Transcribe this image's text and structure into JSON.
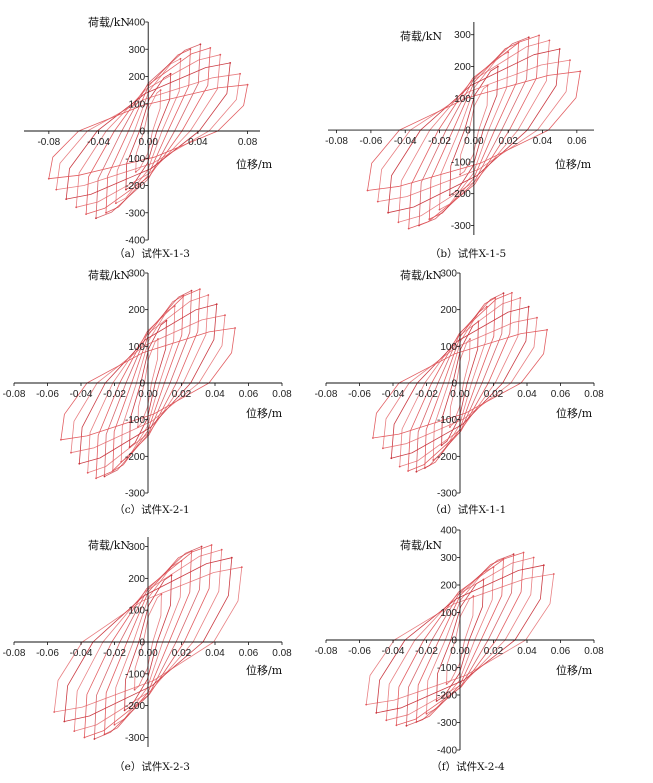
{
  "colors": {
    "curve": "#e0555a",
    "curve_dark": "#c8323a",
    "bg": "#ffffff"
  },
  "chart_data": [
    {
      "type": "line",
      "id": "a",
      "caption": "（a）试件X-1-3",
      "xlabel": "位移/m",
      "ylabel": "荷载/kN",
      "xlim": [
        -0.1,
        0.09
      ],
      "ylim": [
        -400,
        400
      ],
      "xticks": [
        -0.08,
        -0.04,
        0.0,
        0.04,
        0.08
      ],
      "yticks": [
        -400,
        -300,
        -200,
        -100,
        0,
        100,
        200,
        300,
        400
      ],
      "grid": false,
      "series": [
        {
          "x": [
            0.01,
            0.018,
            0.026,
            0.034,
            0.042,
            0.05,
            0.058,
            0.066,
            0.074,
            0.08
          ],
          "peak_load": [
            150,
            210,
            265,
            300,
            318,
            305,
            280,
            250,
            210,
            170
          ],
          "x_neg": [
            -0.01,
            -0.018,
            -0.026,
            -0.034,
            -0.042,
            -0.05,
            -0.058,
            -0.066,
            -0.074,
            -0.08
          ],
          "valley_load": [
            -150,
            -215,
            -265,
            -300,
            -320,
            -305,
            -280,
            -250,
            -215,
            -175
          ]
        }
      ]
    },
    {
      "type": "line",
      "id": "b",
      "caption": "（b）试件X-1-5",
      "xlabel": "位移/m",
      "ylabel": "荷载/kN",
      "xlim": [
        -0.085,
        0.07
      ],
      "ylim": [
        -330,
        340
      ],
      "xticks": [
        -0.08,
        -0.06,
        -0.04,
        -0.02,
        0.0,
        0.02,
        0.04,
        0.06
      ],
      "yticks": [
        -300,
        -200,
        -100,
        0,
        100,
        200,
        300
      ],
      "grid": false,
      "series": [
        {
          "x": [
            0.008,
            0.014,
            0.02,
            0.026,
            0.032,
            0.038,
            0.044,
            0.05,
            0.056,
            0.062
          ],
          "peak_load": [
            140,
            200,
            245,
            275,
            292,
            298,
            282,
            255,
            220,
            185
          ],
          "x_neg": [
            -0.008,
            -0.014,
            -0.02,
            -0.026,
            -0.032,
            -0.038,
            -0.044,
            -0.05,
            -0.056,
            -0.062
          ],
          "valley_load": [
            -140,
            -205,
            -250,
            -280,
            -300,
            -310,
            -290,
            -260,
            -225,
            -190
          ]
        }
      ]
    },
    {
      "type": "line",
      "id": "c",
      "caption": "（c）试件X-2-1",
      "xlabel": "位移/m",
      "ylabel": "荷载/kN",
      "xlim": [
        -0.08,
        0.08
      ],
      "ylim": [
        -300,
        300
      ],
      "xticks": [
        -0.08,
        -0.06,
        -0.04,
        -0.02,
        0.0,
        0.02,
        0.04,
        0.06,
        0.08
      ],
      "yticks": [
        -300,
        -200,
        -100,
        0,
        100,
        200,
        300
      ],
      "grid": false,
      "series": [
        {
          "x": [
            0.006,
            0.011,
            0.016,
            0.021,
            0.026,
            0.031,
            0.036,
            0.041,
            0.046,
            0.052
          ],
          "peak_load": [
            120,
            170,
            210,
            238,
            252,
            256,
            240,
            215,
            185,
            150
          ],
          "x_neg": [
            -0.006,
            -0.011,
            -0.016,
            -0.021,
            -0.026,
            -0.031,
            -0.036,
            -0.041,
            -0.046,
            -0.052
          ],
          "valley_load": [
            -120,
            -175,
            -215,
            -240,
            -255,
            -260,
            -245,
            -220,
            -190,
            -155
          ]
        }
      ]
    },
    {
      "type": "line",
      "id": "d",
      "caption": "（d）试件X-1-1",
      "xlabel": "位移/m",
      "ylabel": "荷载/kN",
      "xlim": [
        -0.08,
        0.08
      ],
      "ylim": [
        -300,
        300
      ],
      "xticks": [
        -0.08,
        -0.06,
        -0.04,
        -0.02,
        0.0,
        0.02,
        0.04,
        0.06,
        0.08
      ],
      "yticks": [
        -300,
        -200,
        -100,
        0,
        100,
        200,
        300
      ],
      "grid": false,
      "series": [
        {
          "x": [
            0.006,
            0.011,
            0.016,
            0.021,
            0.026,
            0.031,
            0.036,
            0.041,
            0.046,
            0.052
          ],
          "peak_load": [
            120,
            168,
            208,
            232,
            245,
            246,
            232,
            208,
            178,
            145
          ],
          "x_neg": [
            -0.006,
            -0.011,
            -0.016,
            -0.021,
            -0.026,
            -0.031,
            -0.036,
            -0.041,
            -0.046,
            -0.052
          ],
          "valley_load": [
            -120,
            -170,
            -210,
            -232,
            -242,
            -240,
            -228,
            -205,
            -178,
            -150
          ]
        }
      ]
    },
    {
      "type": "line",
      "id": "e",
      "caption": "（e）试件X-2-3",
      "xlabel": "位移/m",
      "ylabel": "荷载/kN",
      "xlim": [
        -0.08,
        0.08
      ],
      "ylim": [
        -330,
        330
      ],
      "xticks": [
        -0.08,
        -0.06,
        -0.04,
        -0.02,
        0.0,
        0.02,
        0.04,
        0.06,
        0.08
      ],
      "yticks": [
        -300,
        -200,
        -100,
        0,
        100,
        200,
        300
      ],
      "grid": false,
      "series": [
        {
          "x": [
            0.008,
            0.014,
            0.02,
            0.026,
            0.032,
            0.038,
            0.044,
            0.05,
            0.056
          ],
          "peak_load": [
            150,
            210,
            255,
            285,
            300,
            305,
            290,
            265,
            235
          ],
          "x_neg": [
            -0.008,
            -0.014,
            -0.02,
            -0.026,
            -0.032,
            -0.038,
            -0.044,
            -0.05,
            -0.056
          ],
          "valley_load": [
            -150,
            -215,
            -260,
            -290,
            -305,
            -300,
            -280,
            -250,
            -220
          ]
        }
      ]
    },
    {
      "type": "line",
      "id": "f",
      "caption": "（f）试件X-2-4",
      "xlabel": "位移/m",
      "ylabel": "荷载/kN",
      "xlim": [
        -0.08,
        0.08
      ],
      "ylim": [
        -400,
        400
      ],
      "xticks": [
        -0.08,
        -0.06,
        -0.04,
        -0.02,
        0.0,
        0.02,
        0.04,
        0.06,
        0.08
      ],
      "yticks": [
        -400,
        -300,
        -200,
        -100,
        0,
        100,
        200,
        300,
        400
      ],
      "grid": false,
      "series": [
        {
          "x": [
            0.008,
            0.014,
            0.02,
            0.026,
            0.032,
            0.038,
            0.044,
            0.05,
            0.056
          ],
          "peak_load": [
            160,
            220,
            265,
            295,
            312,
            318,
            300,
            272,
            240
          ],
          "x_neg": [
            -0.008,
            -0.014,
            -0.02,
            -0.026,
            -0.032,
            -0.038,
            -0.044,
            -0.05,
            -0.056
          ],
          "valley_load": [
            -160,
            -222,
            -268,
            -298,
            -312,
            -310,
            -292,
            -265,
            -235
          ]
        }
      ]
    }
  ]
}
